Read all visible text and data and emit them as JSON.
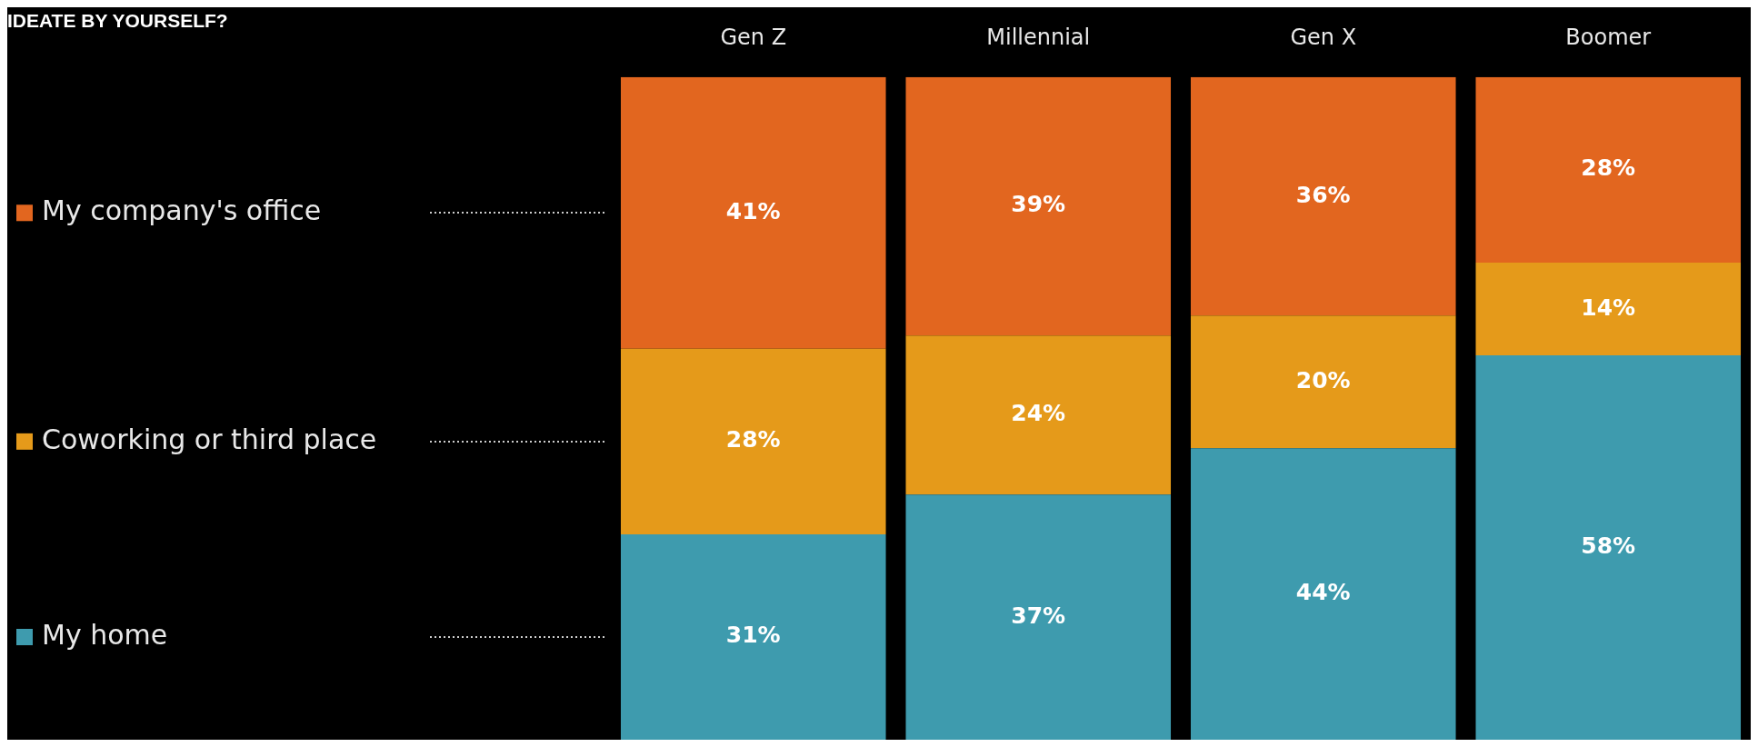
{
  "chart_data": {
    "type": "bar",
    "title": "IDEATE BY YOURSELF?",
    "stacked": true,
    "legend": "left",
    "categories": [
      "Gen Z",
      "Millennial",
      "Gen X",
      "Boomer"
    ],
    "series": [
      {
        "name": "My home",
        "color": "#3e9bae",
        "values": [
          31,
          37,
          44,
          58
        ],
        "value_labels": [
          "31%",
          "37%",
          "44%",
          "58%"
        ]
      },
      {
        "name": "Coworking or third place",
        "color": "#e59a1a",
        "values": [
          28,
          24,
          20,
          14
        ],
        "value_labels": [
          "28%",
          "24%",
          "20%",
          "14%"
        ]
      },
      {
        "name": "My company's office",
        "color": "#e2661f",
        "values": [
          41,
          39,
          36,
          28
        ],
        "value_labels": [
          "41%",
          "39%",
          "36%",
          "28%"
        ]
      }
    ]
  }
}
